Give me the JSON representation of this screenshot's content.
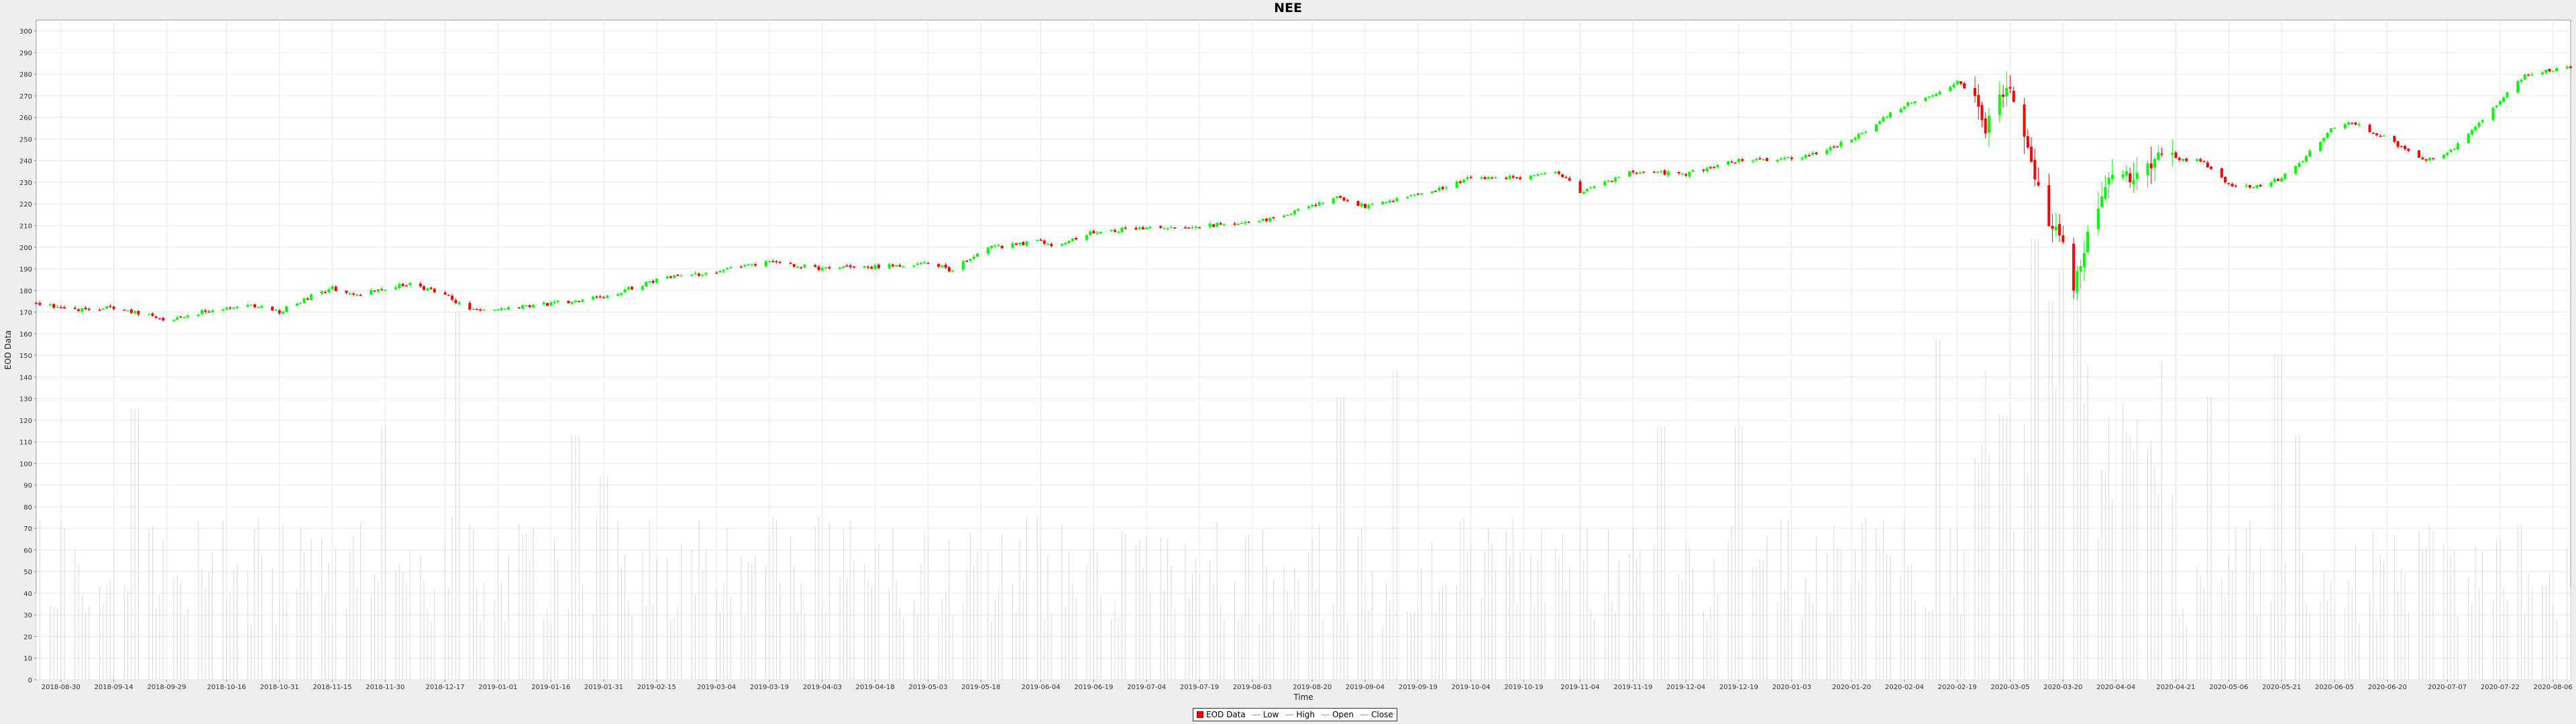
{
  "chart_data": {
    "type": "candlestick",
    "title": "NEE",
    "xlabel": "Time",
    "ylabel": "EOD Data",
    "ylim": [
      0,
      305
    ],
    "y_ticks": [
      0,
      10,
      20,
      30,
      40,
      50,
      60,
      70,
      80,
      90,
      100,
      110,
      120,
      130,
      140,
      150,
      160,
      170,
      180,
      190,
      200,
      210,
      220,
      230,
      240,
      250,
      260,
      270,
      280,
      290,
      300
    ],
    "x_ticks": [
      "2018-08-30",
      "2018-09-14",
      "2018-09-29",
      "2018-10-16",
      "2018-10-31",
      "2018-11-15",
      "2018-11-30",
      "2018-12-17",
      "2019-01-01",
      "2019-01-16",
      "2019-01-31",
      "2019-02-15",
      "2019-03-04",
      "2019-03-19",
      "2019-04-03",
      "2019-04-18",
      "2019-05-03",
      "2019-05-18",
      "2019-06-04",
      "2019-06-19",
      "2019-07-04",
      "2019-07-19",
      "2019-08-03",
      "2019-08-20",
      "2019-09-04",
      "2019-09-19",
      "2019-10-04",
      "2019-10-19",
      "2019-11-04",
      "2019-11-19",
      "2019-12-04",
      "2019-12-19",
      "2020-01-03",
      "2020-01-20",
      "2020-02-04",
      "2020-02-19",
      "2020-03-05",
      "2020-03-20",
      "2020-04-04",
      "2020-04-21",
      "2020-05-06",
      "2020-05-21",
      "2020-06-05",
      "2020-06-20",
      "2020-07-07",
      "2020-07-22",
      "2020-08-06"
    ],
    "x_range": [
      "2018-08-23",
      "2020-08-11"
    ],
    "close_path": [
      [
        "2018-08-23",
        174
      ],
      [
        "2018-09-05",
        171
      ],
      [
        "2018-09-14",
        172
      ],
      [
        "2018-09-25",
        168
      ],
      [
        "2018-09-29",
        166
      ],
      [
        "2018-10-05",
        169
      ],
      [
        "2018-10-16",
        172
      ],
      [
        "2018-10-24",
        173
      ],
      [
        "2018-10-31",
        170
      ],
      [
        "2018-11-07",
        176
      ],
      [
        "2018-11-15",
        181
      ],
      [
        "2018-11-21",
        178
      ],
      [
        "2018-11-30",
        181
      ],
      [
        "2018-12-07",
        183
      ],
      [
        "2018-12-17",
        178
      ],
      [
        "2018-12-24",
        171
      ],
      [
        "2019-01-01",
        171
      ],
      [
        "2019-01-16",
        174
      ],
      [
        "2019-01-31",
        177
      ],
      [
        "2019-02-15",
        185
      ],
      [
        "2019-03-04",
        189
      ],
      [
        "2019-03-19",
        193
      ],
      [
        "2019-04-03",
        190
      ],
      [
        "2019-04-18",
        191
      ],
      [
        "2019-05-03",
        193
      ],
      [
        "2019-05-10",
        189
      ],
      [
        "2019-05-18",
        199
      ],
      [
        "2019-06-04",
        203
      ],
      [
        "2019-06-08",
        200
      ],
      [
        "2019-06-19",
        207
      ],
      [
        "2019-07-04",
        209
      ],
      [
        "2019-07-19",
        210
      ],
      [
        "2019-08-03",
        211
      ],
      [
        "2019-08-20",
        219
      ],
      [
        "2019-08-27",
        223
      ],
      [
        "2019-09-04",
        219
      ],
      [
        "2019-09-19",
        224
      ],
      [
        "2019-10-04",
        232
      ],
      [
        "2019-10-19",
        232
      ],
      [
        "2019-10-28",
        235
      ],
      [
        "2019-11-04",
        226
      ],
      [
        "2019-11-10",
        229
      ],
      [
        "2019-11-19",
        235
      ],
      [
        "2019-12-04",
        234
      ],
      [
        "2019-12-19",
        240
      ],
      [
        "2020-01-03",
        241
      ],
      [
        "2020-01-10",
        243
      ],
      [
        "2020-01-20",
        250
      ],
      [
        "2020-02-04",
        266
      ],
      [
        "2020-02-14",
        272
      ],
      [
        "2020-02-19",
        277
      ],
      [
        "2020-02-24",
        270
      ],
      [
        "2020-02-27",
        256
      ],
      [
        "2020-03-02",
        268
      ],
      [
        "2020-03-05",
        272
      ],
      [
        "2020-03-09",
        252
      ],
      [
        "2020-03-13",
        228
      ],
      [
        "2020-03-16",
        212
      ],
      [
        "2020-03-20",
        200
      ],
      [
        "2020-03-23",
        183
      ],
      [
        "2020-03-27",
        205
      ],
      [
        "2020-04-01",
        226
      ],
      [
        "2020-04-04",
        240
      ],
      [
        "2020-04-09",
        231
      ],
      [
        "2020-04-14",
        240
      ],
      [
        "2020-04-21",
        241
      ],
      [
        "2020-04-28",
        240
      ],
      [
        "2020-05-06",
        229
      ],
      [
        "2020-05-14",
        228
      ],
      [
        "2020-05-21",
        232
      ],
      [
        "2020-05-28",
        242
      ],
      [
        "2020-06-05",
        256
      ],
      [
        "2020-06-10",
        258
      ],
      [
        "2020-06-20",
        250
      ],
      [
        "2020-07-01",
        240
      ],
      [
        "2020-07-07",
        243
      ],
      [
        "2020-07-15",
        255
      ],
      [
        "2020-07-22",
        268
      ],
      [
        "2020-07-29",
        280
      ],
      [
        "2020-08-06",
        282
      ],
      [
        "2020-08-11",
        283
      ]
    ],
    "volume_peaks": [
      [
        "2018-09-20",
        125
      ],
      [
        "2018-11-30",
        117
      ],
      [
        "2018-12-21",
        170
      ],
      [
        "2019-01-23",
        113
      ],
      [
        "2019-01-31",
        94
      ],
      [
        "2019-08-28",
        131
      ],
      [
        "2019-09-13",
        143
      ],
      [
        "2019-11-27",
        117
      ],
      [
        "2019-12-19",
        117
      ],
      [
        "2020-02-14",
        157
      ],
      [
        "2020-03-04",
        122
      ],
      [
        "2020-03-12",
        204
      ],
      [
        "2020-03-16",
        175
      ],
      [
        "2020-03-20",
        190
      ],
      [
        "2020-03-24",
        185
      ],
      [
        "2020-04-18",
        147
      ],
      [
        "2020-05-01",
        131
      ],
      [
        "2020-05-20",
        150
      ],
      [
        "2020-05-25",
        113
      ]
    ],
    "series": [
      {
        "name": "EOD Data",
        "color": "#ff0000"
      },
      {
        "name": "Low"
      },
      {
        "name": "High"
      },
      {
        "name": "Open"
      },
      {
        "name": "Close"
      }
    ],
    "colors": {
      "up": "#00ff00",
      "down": "#ff0000",
      "volume": "#d8d8d8",
      "grid": "#e8e8e8"
    },
    "legend_position": "bottom-center",
    "grid": true
  }
}
